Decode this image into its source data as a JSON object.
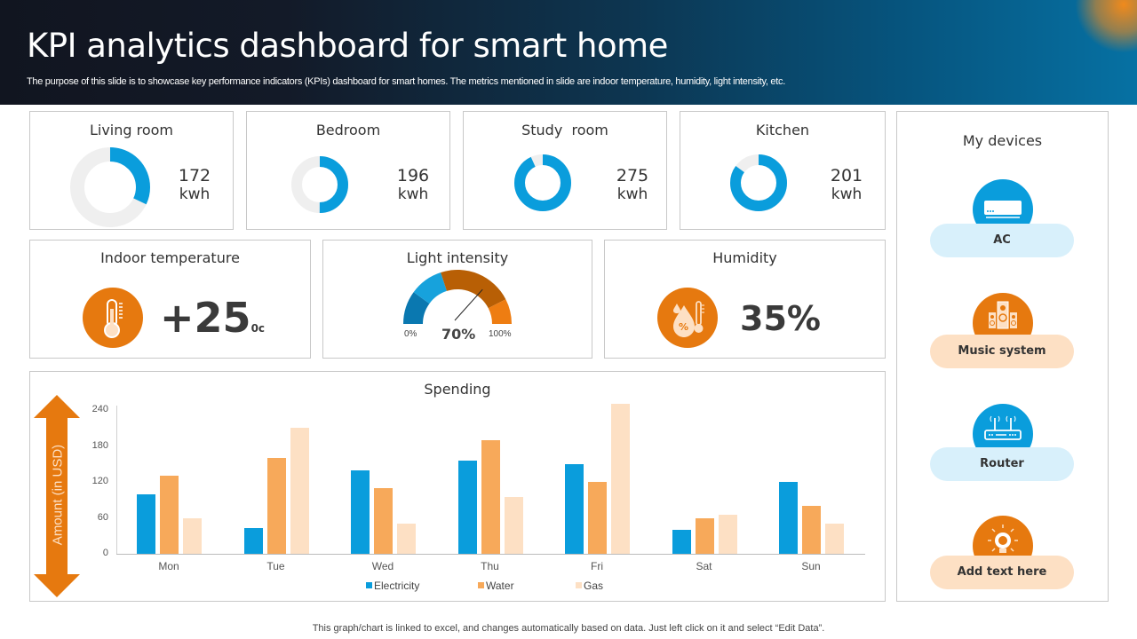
{
  "header": {
    "title": "KPI analytics dashboard for smart home",
    "subtitle": "The purpose of this slide is to showcase key performance indicators (KPIs) dashboard for smart homes. The metrics mentioned in slide are indoor temperature, humidity, light intensity, etc."
  },
  "rooms": [
    {
      "name": "Living room",
      "value": "172",
      "unit": "kwh",
      "fill_pct": 32
    },
    {
      "name": "Bedroom",
      "value": "196",
      "unit": "kwh",
      "fill_pct": 50
    },
    {
      "name": "Study  room",
      "value": "275",
      "unit": "kwh",
      "fill_pct": 93
    },
    {
      "name": "Kitchen",
      "value": "201",
      "unit": "kwh",
      "fill_pct": 85
    }
  ],
  "temperature": {
    "title": "Indoor temperature",
    "value": "+25",
    "unit": "0c",
    "icon": "thermometer-icon"
  },
  "light": {
    "title": "Light intensity",
    "value": "70%",
    "min_label": "0%",
    "max_label": "100%",
    "needle_pct": 70,
    "segments": [
      {
        "from": 0,
        "to": 20,
        "color": "#0a78b0"
      },
      {
        "from": 20,
        "to": 40,
        "color": "#17a2dc"
      },
      {
        "from": 40,
        "to": 85,
        "color": "#b85f05"
      },
      {
        "from": 85,
        "to": 100,
        "color": "#ee7d12"
      }
    ]
  },
  "humidity": {
    "title": "Humidity",
    "value": "35%",
    "icon": "humidity-icon"
  },
  "devices": {
    "title": "My devices",
    "items": [
      {
        "label": "AC",
        "icon": "air-conditioner-icon",
        "circle_color": "#0a9ddc",
        "pill_color": "#d8f0fb"
      },
      {
        "label": "Music system",
        "icon": "speakers-icon",
        "circle_color": "#e6790f",
        "pill_color": "#fde0c4"
      },
      {
        "label": "Router",
        "icon": "router-icon",
        "circle_color": "#0a9ddc",
        "pill_color": "#d8f0fb"
      },
      {
        "label": "Add text here",
        "icon": "lightbulb-icon",
        "circle_color": "#e6790f",
        "pill_color": "#fde0c4"
      }
    ]
  },
  "chart_data": {
    "type": "bar",
    "title": "Spending",
    "xlabel": "",
    "ylabel": "Amount (in USD)",
    "ylim": [
      0,
      240
    ],
    "yticks": [
      0,
      60,
      120,
      180,
      240
    ],
    "grid": false,
    "legend_position": "bottom",
    "categories": [
      "Mon",
      "Tue",
      "Wed",
      "Thu",
      "Fri",
      "Sat",
      "Sun"
    ],
    "series": [
      {
        "name": "Electricity",
        "color": "#0a9ddc",
        "values": [
          100,
          43,
          140,
          155,
          150,
          40,
          120
        ]
      },
      {
        "name": "Water",
        "color": "#f7a95a",
        "values": [
          130,
          160,
          110,
          190,
          120,
          60,
          80
        ]
      },
      {
        "name": "Gas",
        "color": "#fde0c4",
        "values": [
          60,
          210,
          50,
          95,
          250,
          65,
          50
        ]
      }
    ]
  },
  "footnote": "This graph/chart is linked to excel,  and changes automatically based on data. Just left click on it and select “Edit Data”."
}
